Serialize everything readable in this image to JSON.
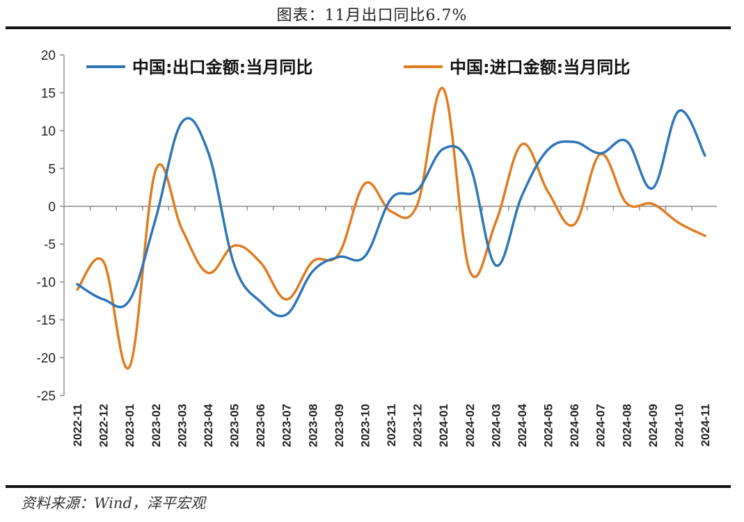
{
  "title": "图表：11月出口同比6.7%",
  "source": "资料来源：Wind，泽平宏观",
  "colors": {
    "export": "#2E75B6",
    "import": "#E07B20",
    "axis": "#8c8c8c"
  },
  "chart_data": {
    "type": "line",
    "categories": [
      "2022-11",
      "2022-12",
      "2023-01",
      "2023-02",
      "2023-03",
      "2023-04",
      "2023-05",
      "2023-06",
      "2023-07",
      "2023-08",
      "2023-09",
      "2023-10",
      "2023-11",
      "2023-12",
      "2024-01",
      "2024-02",
      "2024-03",
      "2024-04",
      "2024-05",
      "2024-06",
      "2024-07",
      "2024-08",
      "2024-09",
      "2024-10",
      "2024-11"
    ],
    "yticks": [
      20,
      15,
      10,
      5,
      0,
      -5,
      -10,
      -15,
      -20,
      -25
    ],
    "ylim": [
      -25,
      20
    ],
    "legend_position": "top",
    "series": [
      {
        "name": "中国:出口金额:当月同比",
        "values": [
          -10.3,
          -12.3,
          -12.4,
          -1.6,
          11.1,
          7.2,
          -7.7,
          -12.6,
          -14.3,
          -8.6,
          -6.7,
          -6.6,
          1.0,
          2.1,
          7.6,
          5.5,
          -7.8,
          1.4,
          7.5,
          8.5,
          7.0,
          8.6,
          2.4,
          12.6,
          6.7
        ]
      },
      {
        "name": "中国:进口金额:当月同比",
        "values": [
          -11.0,
          -7.3,
          -21.2,
          4.8,
          -3.0,
          -8.8,
          -5.2,
          -7.4,
          -12.3,
          -7.3,
          -6.3,
          3.0,
          -0.7,
          0.2,
          15.5,
          -8.5,
          -2.1,
          8.2,
          1.9,
          -2.4,
          6.9,
          0.4,
          0.3,
          -2.2,
          -3.9
        ]
      }
    ]
  }
}
